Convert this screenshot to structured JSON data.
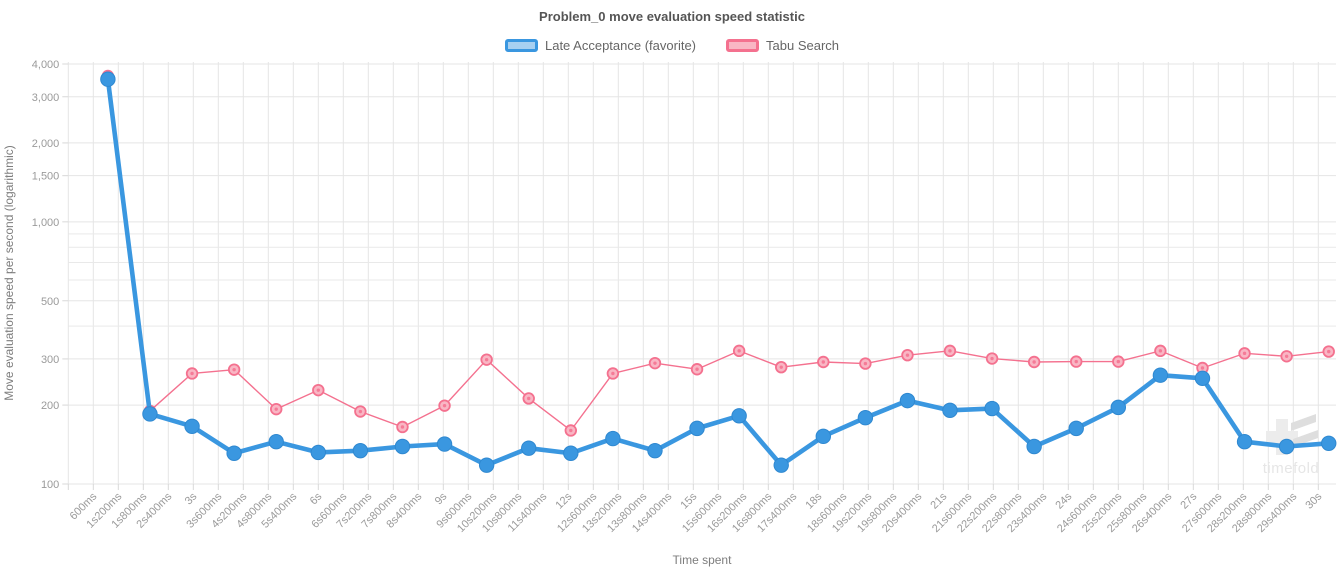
{
  "watermark": {
    "text": "timefold"
  },
  "chart_data": {
    "type": "line",
    "title": "Problem_0 move evaluation speed statistic",
    "xlabel": "Time spent",
    "ylabel": "Move evaluation speed per second (logarithmic)",
    "y_scale": "logarithmic",
    "ylim": [
      100,
      4000
    ],
    "x_tick_labels": [
      "600ms",
      "1s200ms",
      "1s800ms",
      "2s400ms",
      "3s",
      "3s600ms",
      "4s200ms",
      "4s800ms",
      "5s400ms",
      "6s",
      "6s600ms",
      "7s200ms",
      "7s800ms",
      "8s400ms",
      "9s",
      "9s600ms",
      "10s200ms",
      "10s800ms",
      "11s400ms",
      "12s",
      "12s600ms",
      "13s200ms",
      "13s800ms",
      "14s400ms",
      "15s",
      "15s600ms",
      "16s200ms",
      "16s800ms",
      "17s400ms",
      "18s",
      "18s600ms",
      "19s200ms",
      "19s800ms",
      "20s400ms",
      "21s",
      "21s600ms",
      "22s200ms",
      "22s800ms",
      "23s400ms",
      "24s",
      "24s600ms",
      "25s200ms",
      "25s800ms",
      "26s400ms",
      "27s",
      "27s600ms",
      "28s200ms",
      "28s800ms",
      "29s400ms",
      "30s"
    ],
    "x_tick_interval_ms": 600,
    "y_ticks": [
      {
        "value": 4000,
        "label": "4,000"
      },
      {
        "value": 3000,
        "label": "3,000"
      },
      {
        "value": 2000,
        "label": "2,000"
      },
      {
        "value": 1500,
        "label": "1,500"
      },
      {
        "value": 1000,
        "label": "1,000"
      },
      {
        "value": 500,
        "label": "500"
      },
      {
        "value": 300,
        "label": "300"
      },
      {
        "value": 200,
        "label": "200"
      },
      {
        "value": 100,
        "label": "100"
      }
    ],
    "y_grid_unlabeled": [
      400,
      600,
      700,
      800,
      900
    ],
    "x_seconds": [
      0.95,
      1.96,
      2.97,
      3.98,
      4.99,
      6.0,
      7.01,
      8.02,
      9.03,
      10.04,
      11.05,
      12.06,
      13.07,
      14.08,
      15.09,
      16.1,
      17.11,
      18.12,
      19.13,
      20.14,
      21.16,
      22.17,
      23.18,
      24.19,
      25.2,
      26.21,
      27.22,
      28.23,
      29.24,
      30.25
    ],
    "series": [
      {
        "name": "Tabu Search",
        "color": "#f4718f",
        "point_fill": "#f9b6c4",
        "legend_fill": "#f9b6c4",
        "values": [
          3600,
          190,
          264,
          273,
          193,
          228,
          189,
          165,
          199,
          298,
          212,
          160,
          264,
          289,
          274,
          322,
          279,
          292,
          288,
          310,
          322,
          301,
          292,
          293,
          293,
          322,
          277,
          315,
          307,
          320
        ]
      },
      {
        "name": "Late Acceptance (favorite)",
        "color": "#3a97e0",
        "point_fill": "#3a97e0",
        "legend_fill": "#a7d0f1",
        "values": [
          3500,
          185,
          166,
          131,
          145,
          132,
          134,
          139,
          142,
          118,
          137,
          131,
          149,
          134,
          163,
          182,
          118,
          152,
          179,
          208,
          191,
          194,
          139,
          163,
          196,
          260,
          253,
          145,
          139,
          143
        ]
      }
    ],
    "legend_position": "top",
    "grid": true
  }
}
